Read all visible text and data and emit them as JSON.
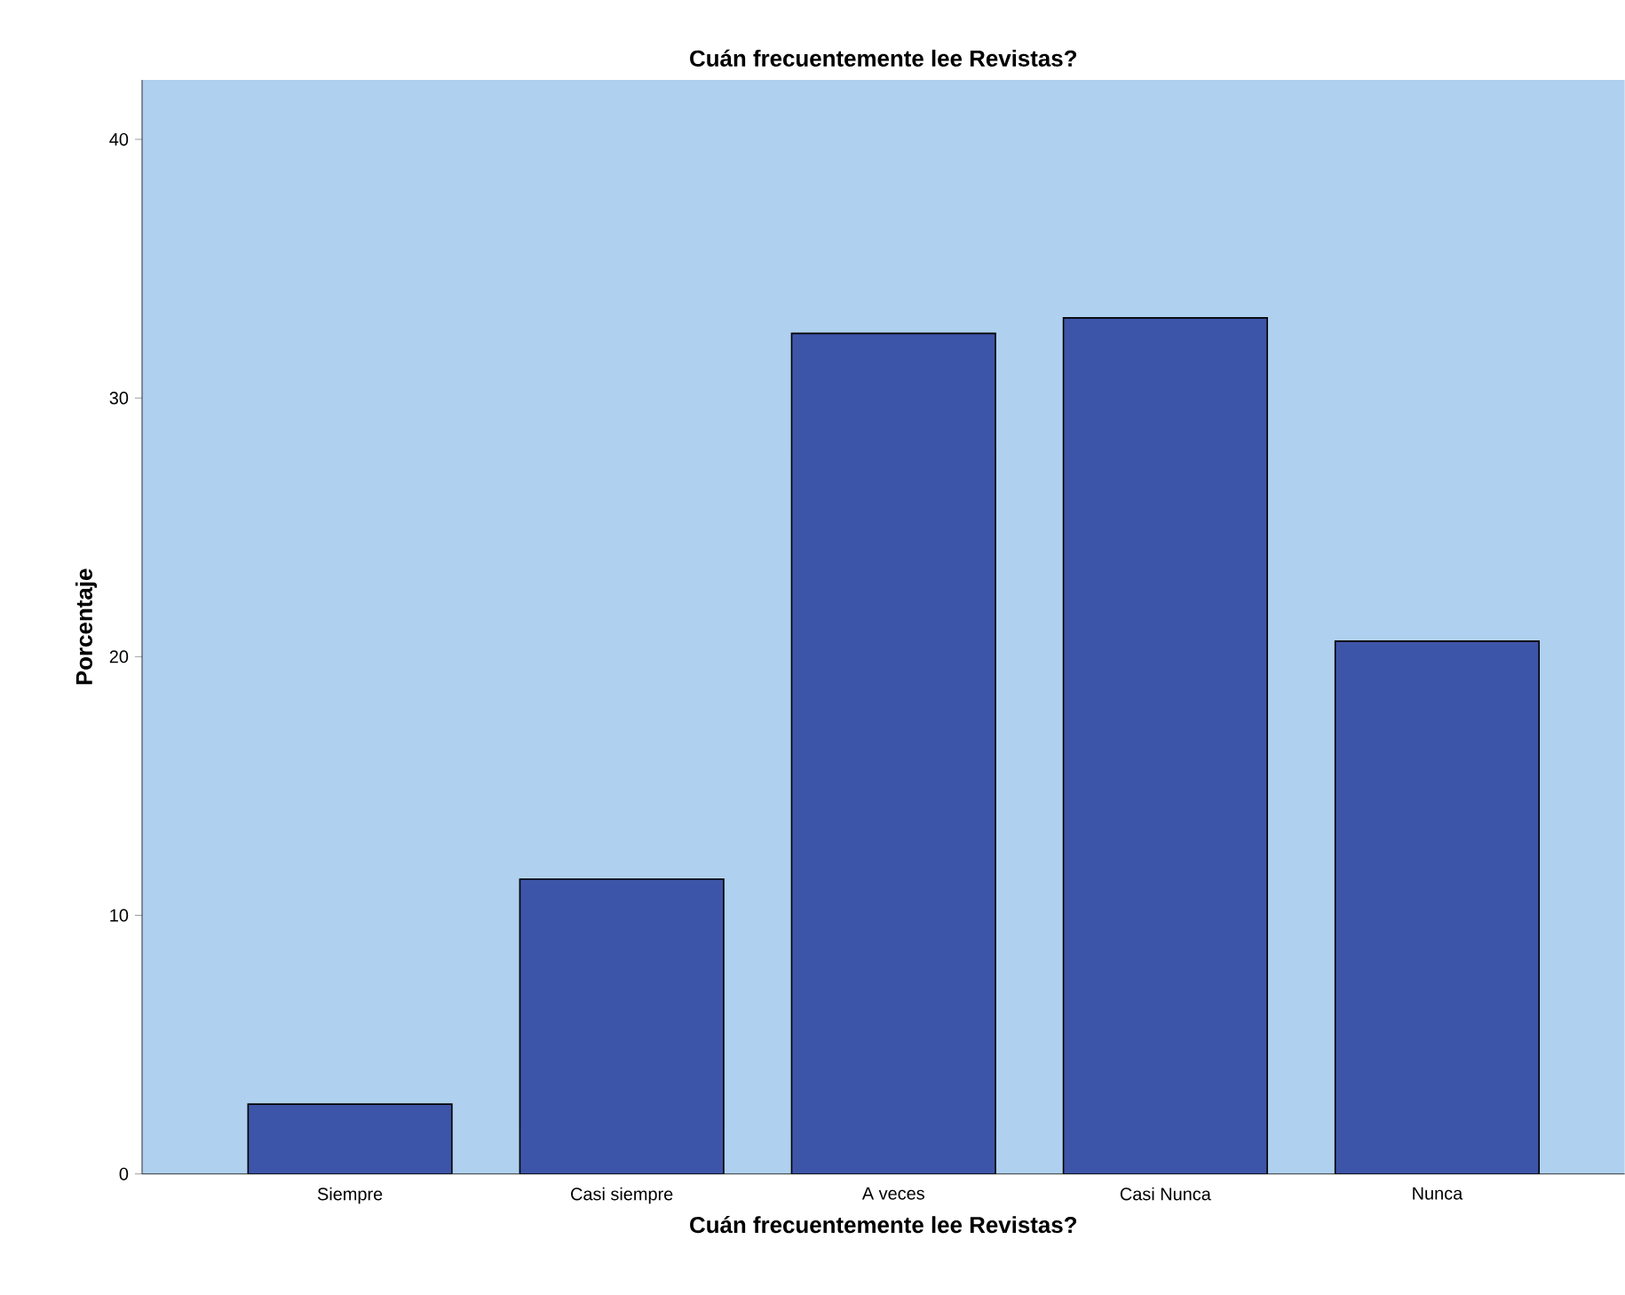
{
  "chart_data": {
    "type": "bar",
    "title": "Cuán frecuentemente lee Revistas?",
    "xlabel": "Cuán frecuentemente lee Revistas?",
    "ylabel": "Porcentaje",
    "categories": [
      "Siempre",
      "Casi siempre",
      "A veces",
      "Casi Nunca",
      "Nunca"
    ],
    "values": [
      2.7,
      11.4,
      32.5,
      33.1,
      20.6
    ],
    "color": "#3d55a8",
    "ylim": [
      0,
      42.3
    ],
    "yticks": [
      0,
      10,
      20,
      30,
      40
    ]
  }
}
